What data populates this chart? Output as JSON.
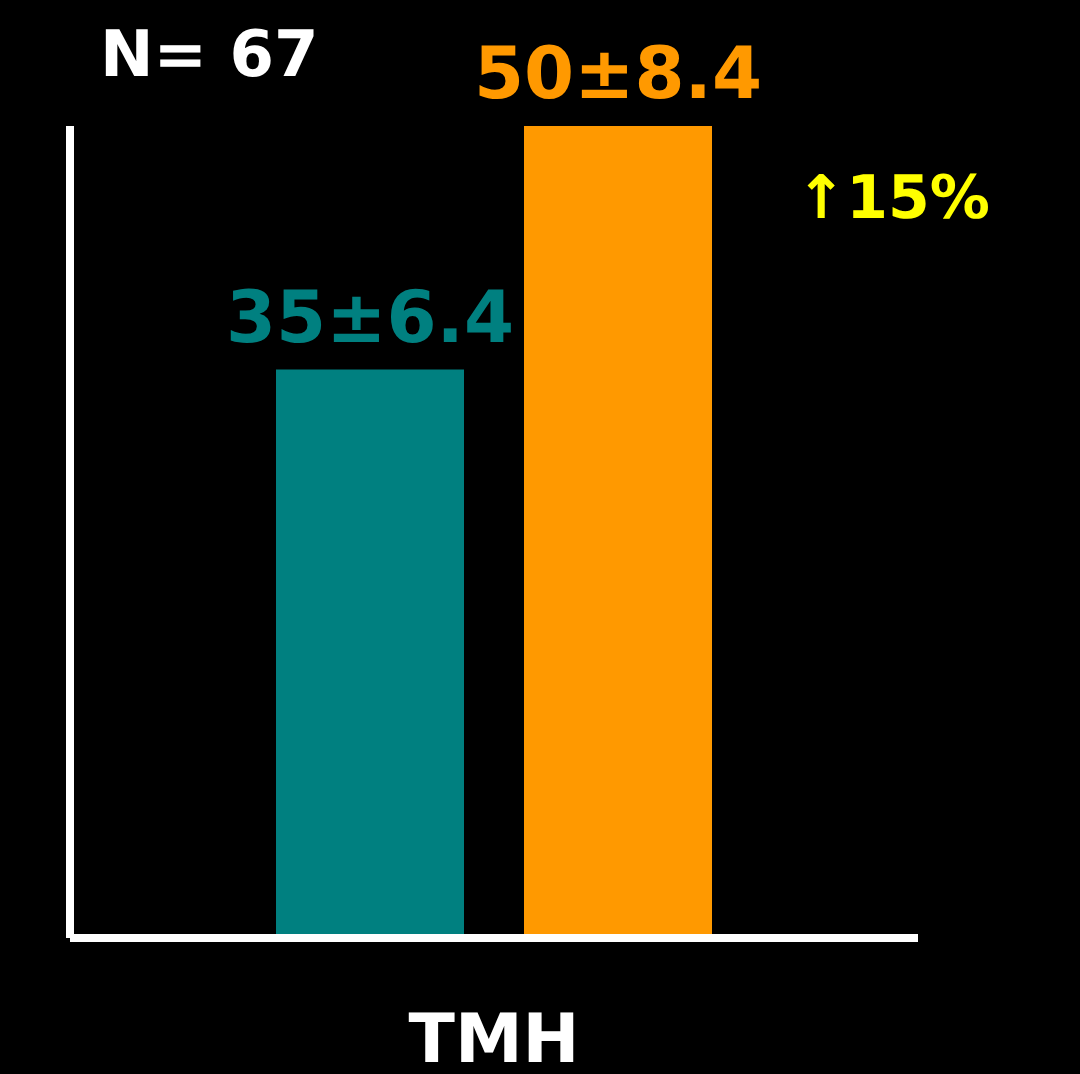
{
  "chart_data": {
    "type": "bar",
    "categories": [
      "TMH"
    ],
    "series": [
      {
        "color": "#008080",
        "values": [
          35
        ],
        "value_labels": [
          "35±6.4"
        ]
      },
      {
        "color": "#ff9900",
        "values": [
          50
        ],
        "value_labels": [
          "50±8.4"
        ]
      }
    ],
    "annotations": [
      "N= 67",
      "↑15%"
    ]
  }
}
